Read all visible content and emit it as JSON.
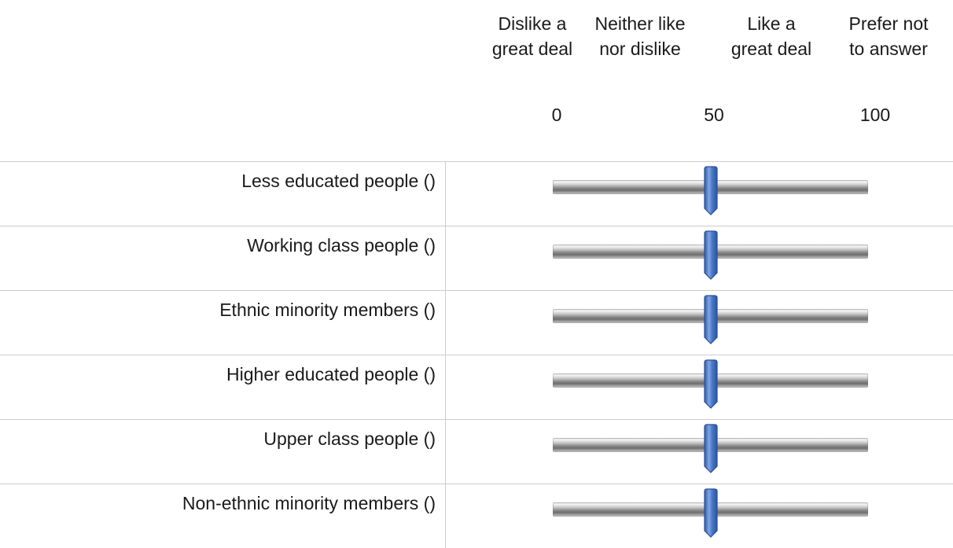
{
  "scale": {
    "headers": [
      {
        "line1": "Dislike a",
        "line2": "great deal"
      },
      {
        "line1": "Neither like",
        "line2": "nor dislike"
      },
      {
        "line1": "Like a",
        "line2": "great deal"
      },
      {
        "line1": "Prefer not",
        "line2": "to answer"
      }
    ],
    "ticks": [
      "0",
      "50",
      "100"
    ],
    "min": 0,
    "max": 100
  },
  "items": [
    {
      "label": "Less educated people ()",
      "value": 50
    },
    {
      "label": "Working class people ()",
      "value": 50
    },
    {
      "label": "Ethnic minority members ()",
      "value": 50
    },
    {
      "label": "Higher educated people ()",
      "value": 50
    },
    {
      "label": "Upper class people ()",
      "value": 50
    },
    {
      "label": "Non-ethnic minority members ()",
      "value": 50
    }
  ],
  "colors": {
    "handle_fill": "#4a78c8",
    "handle_stroke": "#2a4f94",
    "divider": "#cccccc"
  }
}
